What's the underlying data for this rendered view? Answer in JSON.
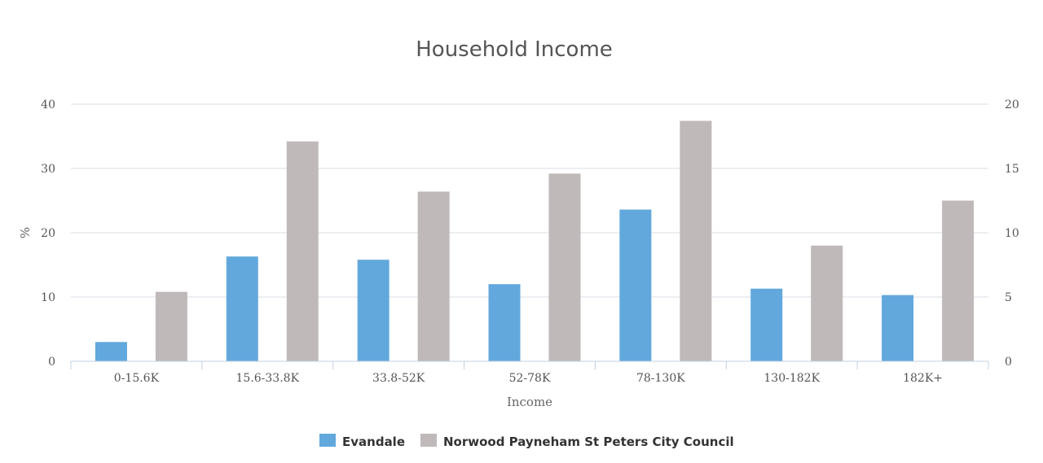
{
  "chart_data": {
    "type": "bar",
    "title": "Household Income",
    "xlabel": "Income",
    "ylabel": "%",
    "categories": [
      "0-15.6K",
      "15.6-33.8K",
      "33.8-52K",
      "52-78K",
      "78-130K",
      "130-182K",
      "182K+"
    ],
    "series": [
      {
        "name": "Evandale",
        "color": "#62a8dc",
        "axis": "left",
        "values": [
          3,
          16.3,
          15.8,
          12,
          23.6,
          11.3,
          10.3
        ]
      },
      {
        "name": "Norwood Payneham St Peters City Council",
        "color": "#bfb9b9",
        "axis": "right",
        "values": [
          5.4,
          17.1,
          13.2,
          14.6,
          18.7,
          9,
          12.5
        ]
      }
    ],
    "ylim": [
      0,
      40
    ],
    "yticks": [
      0,
      10,
      20,
      30,
      40
    ],
    "y2lim": [
      0,
      20
    ],
    "y2ticks": [
      0,
      5,
      10,
      15,
      20
    ],
    "grid": true,
    "legend": "bottom-center"
  }
}
